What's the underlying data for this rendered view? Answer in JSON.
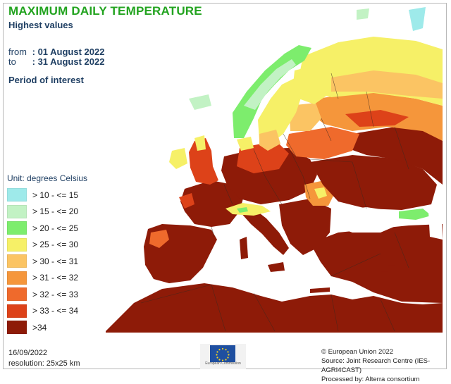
{
  "header": {
    "title": "MAXIMUM DAILY TEMPERATURE",
    "subtitle": "Highest values",
    "from_label": "from",
    "from_value": ": 01 August 2022",
    "to_label": "to",
    "to_value": ": 31 August 2022",
    "period": "Period of interest"
  },
  "legend": {
    "unit": "Unit: degrees Celsius",
    "items": [
      {
        "label": "> 10 - <= 15",
        "color": "#9eeaea"
      },
      {
        "label": "> 15 - <= 20",
        "color": "#c2f2c4"
      },
      {
        "label": "> 20 - <= 25",
        "color": "#7ded6d"
      },
      {
        "label": "> 25 - <= 30",
        "color": "#f6f067"
      },
      {
        "label": "> 30 - <= 31",
        "color": "#fbc463"
      },
      {
        "label": "> 31 - <= 32",
        "color": "#f5963b"
      },
      {
        "label": "> 32 - <= 33",
        "color": "#ef6a2c"
      },
      {
        "label": "> 33 - <= 34",
        "color": "#dd4219"
      },
      {
        "label": ">34",
        "color": "#8e1b08"
      }
    ]
  },
  "footer": {
    "date": "16/09/2022",
    "resolution": "resolution:  25x25 km",
    "copyright": "© European Union 2022",
    "source": "Source: Joint Research Centre (IES-AGRI4CAST)",
    "processed": "Processed by: Alterra consortium",
    "eu_logo_text": "European Commission"
  },
  "colors": {
    "sea": "#ffffff",
    "title": "#22a31f",
    "text": "#1f3f63",
    "border": "#3a2a20"
  }
}
